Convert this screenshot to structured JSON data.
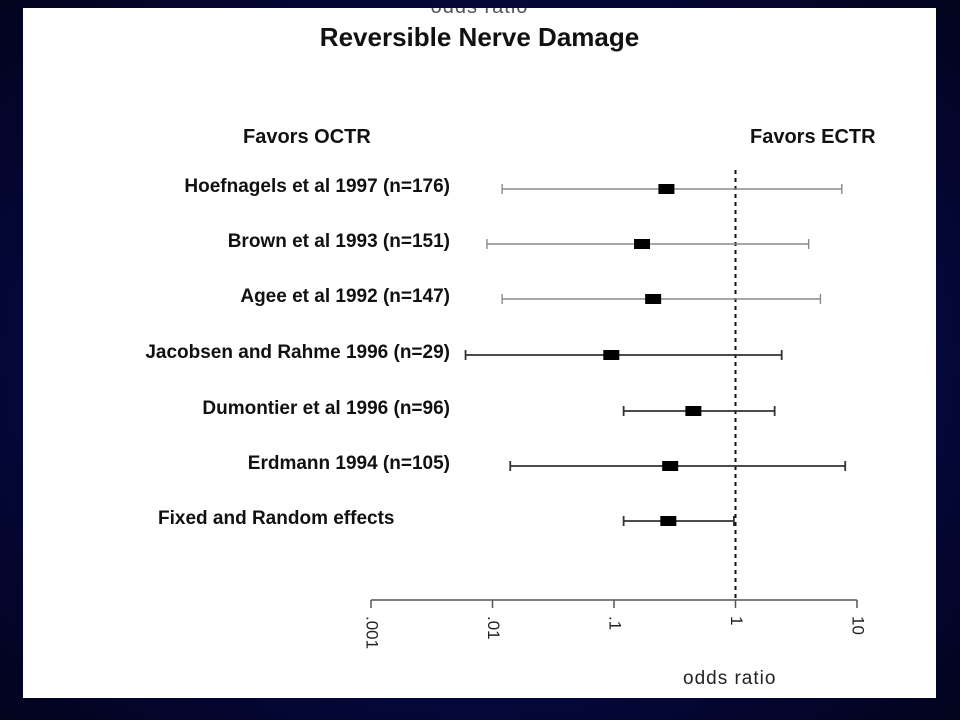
{
  "slide": {
    "cut_label": "odds ratio",
    "title": "Reversible Nerve Damage",
    "favors_left": "Favors OCTR",
    "favors_right": "Favors ECTR"
  },
  "chart_data": {
    "type": "forest",
    "title": "Reversible Nerve Damage",
    "xlabel": "odds ratio",
    "x_scale": "log",
    "xlim": [
      0.001,
      10
    ],
    "x_ticks": [
      0.001,
      0.01,
      0.1,
      1,
      10
    ],
    "x_tick_labels": [
      ".001",
      ".01",
      ".1",
      "1",
      "10"
    ],
    "reference_line": 1,
    "studies": [
      {
        "label": "Hoefnagels et al 1997  (n=176)",
        "or": 0.27,
        "lower": 0.012,
        "upper": 7.5,
        "weight": "light"
      },
      {
        "label": "Brown et al 1993  (n=151)",
        "or": 0.17,
        "lower": 0.009,
        "upper": 4.0,
        "weight": "light"
      },
      {
        "label": "Agee et al 1992  (n=147)",
        "or": 0.21,
        "lower": 0.012,
        "upper": 5.0,
        "weight": "light"
      },
      {
        "label": "Jacobsen and Rahme 1996  (n=29)",
        "or": 0.095,
        "lower": 0.006,
        "upper": 2.4,
        "weight": "heavy"
      },
      {
        "label": "Dumontier et al 1996  (n=96)",
        "or": 0.45,
        "lower": 0.12,
        "upper": 2.1,
        "weight": "heavy"
      },
      {
        "label": "Erdmann 1994  (n=105)",
        "or": 0.29,
        "lower": 0.014,
        "upper": 8.0,
        "weight": "heavy"
      },
      {
        "label": "Fixed and Random effects",
        "or": 0.28,
        "lower": 0.12,
        "upper": 0.97,
        "weight": "heavy"
      }
    ]
  }
}
